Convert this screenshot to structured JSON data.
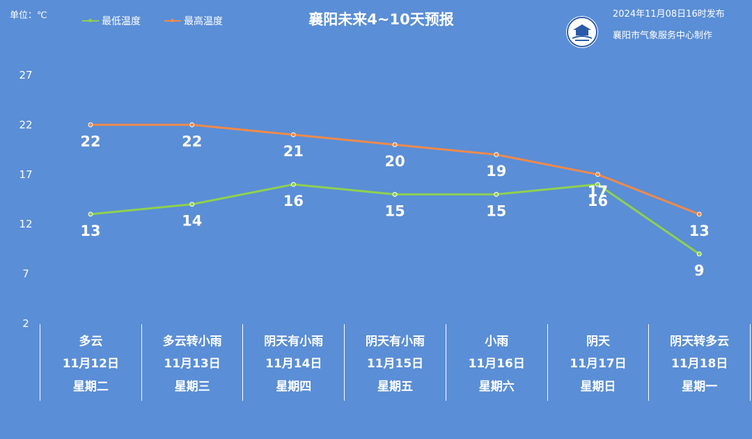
{
  "header": {
    "unit": "单位：℃",
    "title": "襄阳未来4~10天预报",
    "publish_time": "2024年11月08日16时发布",
    "maker": "襄阳市气象服务中心制作"
  },
  "colors": {
    "background": "#5a8ed6",
    "low": "#8fd14f",
    "high": "#f08a4b"
  },
  "chart_data": {
    "type": "line",
    "categories": [
      "11月12日",
      "11月13日",
      "11月14日",
      "11月15日",
      "11月16日",
      "11月17日",
      "11月18日"
    ],
    "series": [
      {
        "name": "最低温度",
        "values": [
          13,
          14,
          16,
          15,
          15,
          16,
          9
        ]
      },
      {
        "name": "最高温度",
        "values": [
          22,
          22,
          21,
          20,
          19,
          17,
          13
        ]
      }
    ],
    "yticks": [
      2,
      7,
      12,
      17,
      22,
      27
    ],
    "ylim": [
      2,
      27
    ],
    "legend_position": "top-left",
    "grid": false
  },
  "forecast": [
    {
      "weather": "多云",
      "date": "11月12日",
      "weekday": "星期二"
    },
    {
      "weather": "多云转小雨",
      "date": "11月13日",
      "weekday": "星期三"
    },
    {
      "weather": "阴天有小雨",
      "date": "11月14日",
      "weekday": "星期四"
    },
    {
      "weather": "阴天有小雨",
      "date": "11月15日",
      "weekday": "星期五"
    },
    {
      "weather": "小雨",
      "date": "11月16日",
      "weekday": "星期六"
    },
    {
      "weather": "阴天",
      "date": "11月17日",
      "weekday": "星期日"
    },
    {
      "weather": "阴天转多云",
      "date": "11月18日",
      "weekday": "星期一"
    }
  ]
}
